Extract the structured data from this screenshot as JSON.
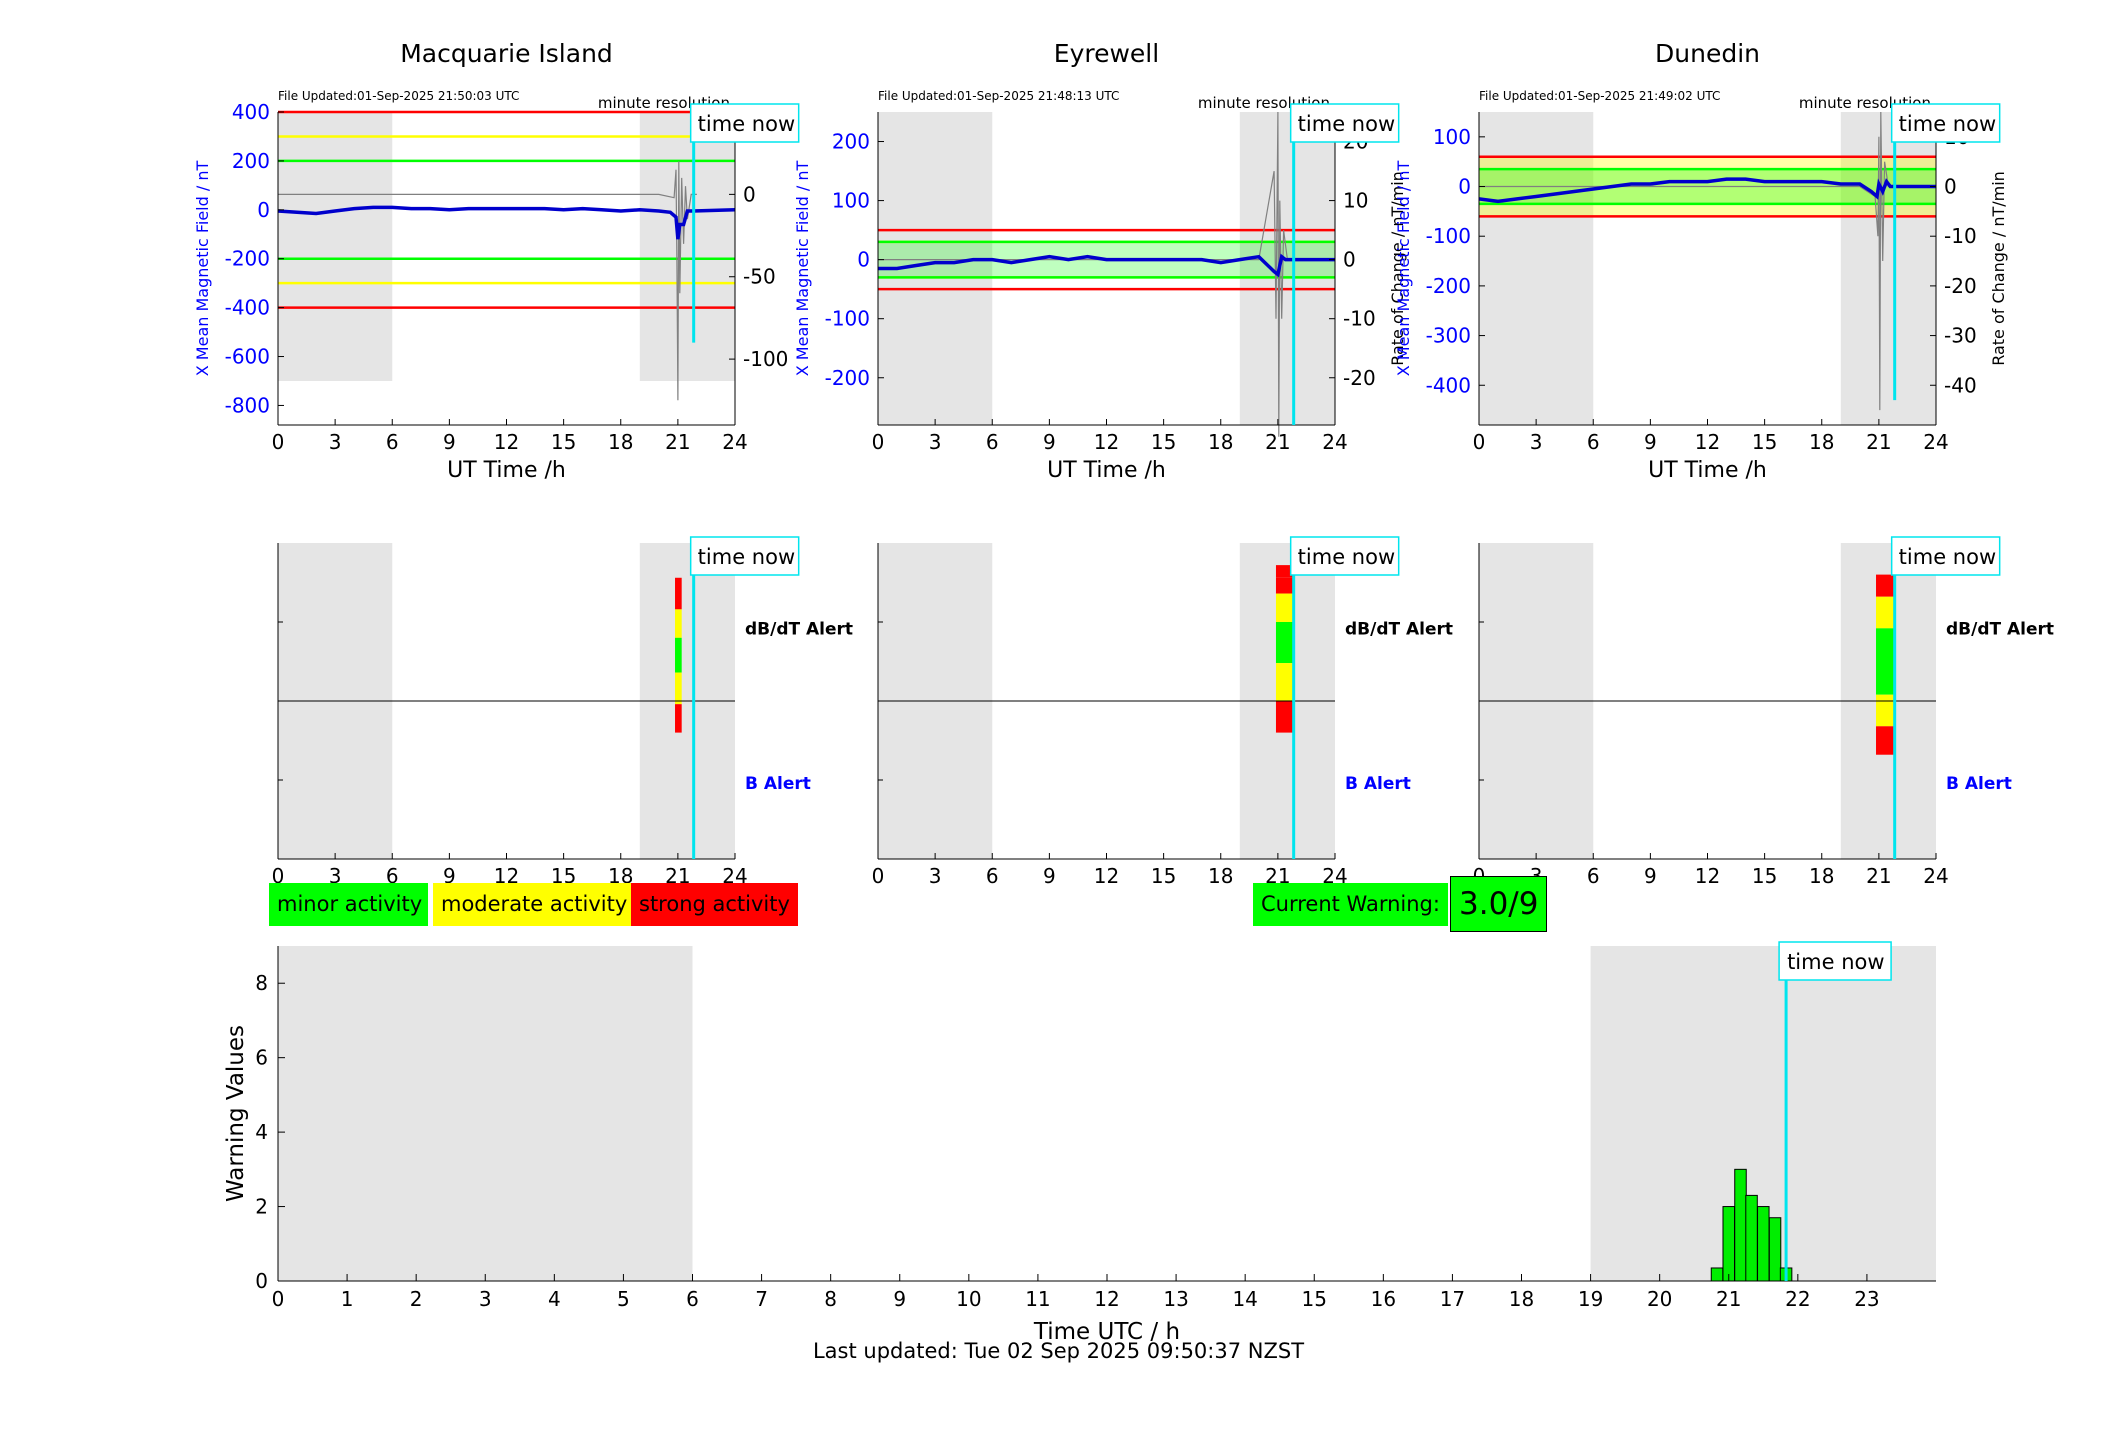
{
  "colors": {
    "shade": "#e5e5e5",
    "mag": "#0000cc",
    "roc": "#808080",
    "red": "#ff0000",
    "yellow": "#ffff00",
    "green": "#00ff00",
    "cyan": "#00e5ee",
    "bar": "#00ee00"
  },
  "panels": [
    {
      "title": "Macquarie Island",
      "file_updated": "File Updated:01-Sep-2025 21:50:03 UTC",
      "resolution": "minute resolution",
      "left_ylim": [
        -880,
        400
      ],
      "left_ticks": [
        400,
        200,
        0,
        -200,
        -400,
        -600,
        -800
      ],
      "right_ylim": [
        -140,
        50
      ],
      "right_ticks": [
        50,
        0,
        -50,
        -100
      ],
      "right_ylabel": "",
      "thresholds": [
        {
          "v": 400,
          "c": "red"
        },
        {
          "v": 300,
          "c": "yellow"
        },
        {
          "v": 200,
          "c": "green"
        },
        {
          "v": -200,
          "c": "green"
        },
        {
          "v": -300,
          "c": "yellow"
        },
        {
          "v": -400,
          "c": "red"
        }
      ],
      "shade_ylim": [
        -700,
        400
      ],
      "mag": [
        [
          0,
          -5
        ],
        [
          1,
          -10
        ],
        [
          2,
          -15
        ],
        [
          3,
          -5
        ],
        [
          4,
          5
        ],
        [
          5,
          10
        ],
        [
          6,
          10
        ],
        [
          7,
          5
        ],
        [
          8,
          5
        ],
        [
          9,
          0
        ],
        [
          10,
          5
        ],
        [
          11,
          5
        ],
        [
          12,
          5
        ],
        [
          13,
          5
        ],
        [
          14,
          5
        ],
        [
          15,
          0
        ],
        [
          16,
          5
        ],
        [
          17,
          0
        ],
        [
          18,
          -5
        ],
        [
          19,
          0
        ],
        [
          20,
          -5
        ],
        [
          20.6,
          -10
        ],
        [
          20.9,
          -30
        ],
        [
          21.0,
          -120
        ],
        [
          21.1,
          -60
        ],
        [
          21.3,
          -60
        ],
        [
          21.5,
          -5
        ],
        [
          21.8,
          -5
        ],
        [
          24,
          0
        ]
      ],
      "roc": [
        [
          0,
          0
        ],
        [
          20,
          0
        ],
        [
          20.8,
          -2
        ],
        [
          20.9,
          15
        ],
        [
          20.95,
          -40
        ],
        [
          21.0,
          -125
        ],
        [
          21.05,
          20
        ],
        [
          21.1,
          -60
        ],
        [
          21.2,
          10
        ],
        [
          21.3,
          -30
        ],
        [
          21.4,
          5
        ],
        [
          21.5,
          -15
        ],
        [
          21.7,
          0
        ],
        [
          22,
          0
        ]
      ],
      "cursor_roc_end": -90,
      "alerts": [
        {
          "y0": 0.79,
          "y1": 0.89,
          "c": "red"
        },
        {
          "y0": 0.7,
          "y1": 0.79,
          "c": "yellow"
        },
        {
          "y0": 0.59,
          "y1": 0.7,
          "c": "green"
        },
        {
          "y0": 0.49,
          "y1": 0.59,
          "c": "yellow"
        },
        {
          "y0": 0.4,
          "y1": 0.49,
          "c": "red"
        }
      ],
      "alert_x": [
        20.85,
        21.2
      ]
    },
    {
      "title": "Eyrewell",
      "file_updated": "File Updated:01-Sep-2025 21:48:13 UTC",
      "resolution": "minute resolution",
      "left_ylim": [
        -280,
        250
      ],
      "left_ticks": [
        200,
        100,
        0,
        -100,
        -200
      ],
      "right_ylim": [
        -28,
        25
      ],
      "right_ticks": [
        20,
        10,
        0,
        -10,
        -20
      ],
      "right_ylabel": "Rate of Change / nT/min",
      "thresholds": [
        {
          "v": 50,
          "c": "red"
        },
        {
          "v": 30,
          "c": "yellow"
        },
        {
          "v": -30,
          "c": "yellow"
        },
        {
          "v": -50,
          "c": "red"
        }
      ],
      "green_band": [
        -30,
        30
      ],
      "shade_ylim": [
        -280,
        250
      ],
      "mag": [
        [
          0,
          -15
        ],
        [
          1,
          -15
        ],
        [
          2,
          -10
        ],
        [
          3,
          -5
        ],
        [
          4,
          -5
        ],
        [
          5,
          0
        ],
        [
          6,
          0
        ],
        [
          7,
          -5
        ],
        [
          8,
          0
        ],
        [
          9,
          5
        ],
        [
          10,
          0
        ],
        [
          11,
          5
        ],
        [
          12,
          0
        ],
        [
          13,
          0
        ],
        [
          14,
          0
        ],
        [
          15,
          0
        ],
        [
          16,
          0
        ],
        [
          17,
          0
        ],
        [
          18,
          -5
        ],
        [
          19,
          0
        ],
        [
          20,
          5
        ],
        [
          20.8,
          -20
        ],
        [
          21.0,
          -25
        ],
        [
          21.2,
          5
        ],
        [
          21.4,
          0
        ],
        [
          21.8,
          0
        ],
        [
          24,
          0
        ]
      ],
      "roc": [
        [
          0,
          0
        ],
        [
          20,
          0
        ],
        [
          20.8,
          15
        ],
        [
          20.9,
          -10
        ],
        [
          21.0,
          25
        ],
        [
          21.05,
          -30
        ],
        [
          21.1,
          10
        ],
        [
          21.2,
          -10
        ],
        [
          21.3,
          5
        ],
        [
          21.5,
          0
        ],
        [
          22,
          0
        ]
      ],
      "cursor_roc_end": -28,
      "alerts": [
        {
          "y0": 0.89,
          "y1": 0.93,
          "c": "red"
        },
        {
          "y0": 0.84,
          "y1": 0.89,
          "c": "red"
        },
        {
          "y0": 0.75,
          "y1": 0.84,
          "c": "yellow"
        },
        {
          "y0": 0.62,
          "y1": 0.75,
          "c": "green"
        },
        {
          "y0": 0.5,
          "y1": 0.62,
          "c": "yellow"
        },
        {
          "y0": 0.4,
          "y1": 0.5,
          "c": "red"
        }
      ],
      "alert_x": [
        20.9,
        21.8
      ]
    },
    {
      "title": "Dunedin",
      "file_updated": "File Updated:01-Sep-2025 21:49:02 UTC",
      "resolution": "minute resolution",
      "left_ylim": [
        -480,
        150
      ],
      "left_ticks": [
        100,
        0,
        -100,
        -200,
        -300,
        -400
      ],
      "right_ylim": [
        -48,
        15
      ],
      "right_ticks": [
        10,
        0,
        -10,
        -20,
        -30,
        -40
      ],
      "right_ylabel": "Rate of Change / nT/min",
      "thresholds": [
        {
          "v": 60,
          "c": "red"
        },
        {
          "v": -60,
          "c": "red"
        }
      ],
      "band_yellow": [
        -60,
        60
      ],
      "band_green": [
        -35,
        35
      ],
      "shade_ylim": [
        -480,
        150
      ],
      "mag": [
        [
          0,
          -25
        ],
        [
          1,
          -30
        ],
        [
          2,
          -25
        ],
        [
          3,
          -20
        ],
        [
          4,
          -15
        ],
        [
          5,
          -10
        ],
        [
          6,
          -5
        ],
        [
          7,
          0
        ],
        [
          8,
          5
        ],
        [
          9,
          5
        ],
        [
          10,
          10
        ],
        [
          11,
          10
        ],
        [
          12,
          10
        ],
        [
          13,
          15
        ],
        [
          14,
          15
        ],
        [
          15,
          10
        ],
        [
          16,
          10
        ],
        [
          17,
          10
        ],
        [
          18,
          10
        ],
        [
          19,
          5
        ],
        [
          20,
          5
        ],
        [
          20.6,
          -10
        ],
        [
          20.9,
          -20
        ],
        [
          21.0,
          5
        ],
        [
          21.2,
          -10
        ],
        [
          21.4,
          10
        ],
        [
          21.6,
          0
        ],
        [
          24,
          0
        ]
      ],
      "roc": [
        [
          0,
          0
        ],
        [
          20,
          0
        ],
        [
          20.8,
          -2
        ],
        [
          20.95,
          -10
        ],
        [
          21.0,
          10
        ],
        [
          21.05,
          -45
        ],
        [
          21.1,
          15
        ],
        [
          21.2,
          -15
        ],
        [
          21.3,
          5
        ],
        [
          21.5,
          0
        ],
        [
          22,
          0
        ]
      ],
      "cursor_roc_end": -43,
      "alerts": [
        {
          "y0": 0.83,
          "y1": 0.9,
          "c": "red"
        },
        {
          "y0": 0.73,
          "y1": 0.83,
          "c": "yellow"
        },
        {
          "y0": 0.52,
          "y1": 0.73,
          "c": "green"
        },
        {
          "y0": 0.42,
          "y1": 0.52,
          "c": "yellow"
        },
        {
          "y0": 0.33,
          "y1": 0.42,
          "c": "red"
        }
      ],
      "alert_x": [
        20.85,
        21.8
      ]
    }
  ],
  "labels": {
    "left_ylabel": "X Mean Magnetic Field / nT",
    "xlabel": "UT Time /h",
    "time_now": "time now",
    "dbdt_alert": "dB/dT Alert",
    "b_alert": "B Alert",
    "x_ticks": [
      "0",
      "3",
      "6",
      "9",
      "12",
      "15",
      "18",
      "21",
      "24"
    ]
  },
  "legend": {
    "minor": "minor activity",
    "moderate": "moderate activity",
    "strong": "strong activity"
  },
  "warning": {
    "label": "Current Warning:",
    "value": "3.0/9"
  },
  "chart_data": {
    "type": "bar",
    "ylabel": "Warning Values",
    "xlabel": "Time UTC / h",
    "xlim": [
      0,
      24
    ],
    "ylim": [
      0,
      9
    ],
    "x_ticks": [
      "0",
      "1",
      "2",
      "3",
      "4",
      "5",
      "6",
      "7",
      "8",
      "9",
      "10",
      "11",
      "12",
      "13",
      "14",
      "15",
      "16",
      "17",
      "18",
      "19",
      "20",
      "21",
      "22",
      "23"
    ],
    "y_ticks": [
      "0",
      "2",
      "4",
      "6",
      "8"
    ],
    "shade": [
      [
        0,
        6
      ],
      [
        19,
        24
      ]
    ],
    "time_now": 21.83,
    "bars": [
      {
        "x": 20.83,
        "value": 0.35
      },
      {
        "x": 21.0,
        "value": 2.0
      },
      {
        "x": 21.17,
        "value": 3.0
      },
      {
        "x": 21.33,
        "value": 2.3
      },
      {
        "x": 21.5,
        "value": 2.0
      },
      {
        "x": 21.67,
        "value": 1.7
      },
      {
        "x": 21.83,
        "value": 0.35
      }
    ]
  },
  "footer": "Last updated: Tue 02 Sep 2025 09:50:37 NZST"
}
